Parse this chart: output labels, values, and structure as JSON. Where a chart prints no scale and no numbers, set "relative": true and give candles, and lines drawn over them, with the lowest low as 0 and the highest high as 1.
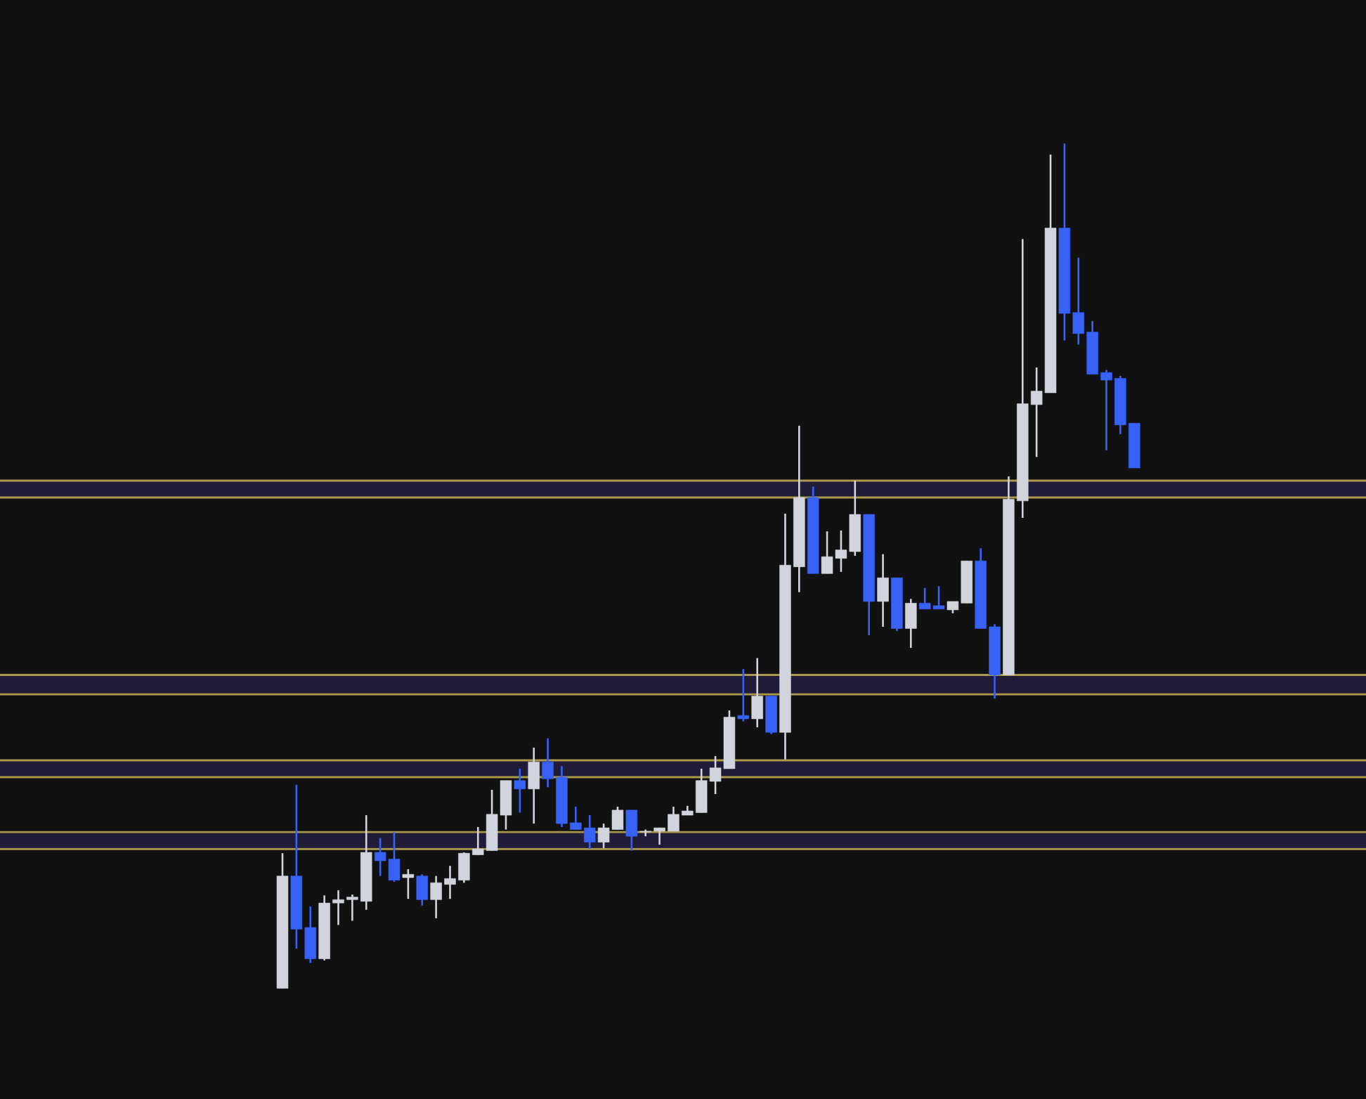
{
  "chart_data": {
    "type": "candlestick",
    "relative": true,
    "categories": [
      null,
      null,
      null,
      null,
      null,
      null,
      null,
      null,
      null,
      null,
      null,
      null,
      null,
      null,
      null,
      null,
      null,
      null,
      null,
      null,
      null,
      null,
      null,
      null,
      null,
      null,
      null,
      null,
      null,
      null,
      null,
      null,
      null,
      null,
      null,
      null,
      null,
      null,
      null,
      null,
      null,
      null,
      null,
      null,
      null,
      null,
      null,
      null,
      null,
      null,
      null,
      null,
      null,
      null,
      null,
      null,
      null,
      null,
      null,
      null,
      null,
      null
    ],
    "ohlc": [
      [
        0,
        0.16,
        0,
        0.133
      ],
      [
        0.133,
        0.241,
        0.047,
        0.07
      ],
      [
        0.072,
        0.097,
        0.03,
        0.035
      ],
      [
        0.035,
        0.11,
        0.033,
        0.101
      ],
      [
        0.101,
        0.116,
        0.075,
        0.105
      ],
      [
        0.105,
        0.111,
        0.08,
        0.108
      ],
      [
        0.103,
        0.205,
        0.093,
        0.161
      ],
      [
        0.161,
        0.178,
        0.133,
        0.151
      ],
      [
        0.153,
        0.185,
        0.126,
        0.128
      ],
      [
        0.131,
        0.141,
        0.106,
        0.135
      ],
      [
        0.133,
        0.135,
        0.098,
        0.105
      ],
      [
        0.105,
        0.133,
        0.083,
        0.125
      ],
      [
        0.123,
        0.145,
        0.106,
        0.13
      ],
      [
        0.128,
        0.161,
        0.125,
        0.16
      ],
      [
        0.158,
        0.191,
        0.158,
        0.165
      ],
      [
        0.163,
        0.235,
        0.163,
        0.206
      ],
      [
        0.205,
        0.246,
        0.188,
        0.246
      ],
      [
        0.246,
        0.26,
        0.208,
        0.236
      ],
      [
        0.236,
        0.285,
        0.195,
        0.268
      ],
      [
        0.268,
        0.296,
        0.238,
        0.248
      ],
      [
        0.25,
        0.263,
        0.191,
        0.195
      ],
      [
        0.196,
        0.215,
        0.188,
        0.188
      ],
      [
        0.19,
        0.205,
        0.165,
        0.173
      ],
      [
        0.173,
        0.195,
        0.166,
        0.19
      ],
      [
        0.188,
        0.215,
        0.188,
        0.211
      ],
      [
        0.211,
        0.211,
        0.163,
        0.18
      ],
      [
        0.185,
        0.188,
        0.18,
        0.186
      ],
      [
        0.186,
        0.19,
        0.17,
        0.19
      ],
      [
        0.186,
        0.215,
        0.186,
        0.206
      ],
      [
        0.205,
        0.216,
        0.205,
        0.21
      ],
      [
        0.208,
        0.26,
        0.208,
        0.246
      ],
      [
        0.245,
        0.275,
        0.23,
        0.261
      ],
      [
        0.26,
        0.329,
        0.26,
        0.321
      ],
      [
        0.323,
        0.378,
        0.316,
        0.319
      ],
      [
        0.319,
        0.391,
        0.309,
        0.346
      ],
      [
        0.346,
        0.346,
        0.301,
        0.303
      ],
      [
        0.303,
        0.562,
        0.271,
        0.501
      ],
      [
        0.499,
        0.666,
        0.469,
        0.581
      ],
      [
        0.581,
        0.594,
        0.491,
        0.491
      ],
      [
        0.491,
        0.541,
        0.491,
        0.511
      ],
      [
        0.509,
        0.542,
        0.493,
        0.519
      ],
      [
        0.517,
        0.601,
        0.512,
        0.561
      ],
      [
        0.561,
        0.561,
        0.418,
        0.458
      ],
      [
        0.458,
        0.514,
        0.428,
        0.486
      ],
      [
        0.486,
        0.486,
        0.423,
        0.426
      ],
      [
        0.426,
        0.461,
        0.403,
        0.456
      ],
      [
        0.456,
        0.474,
        0.449,
        0.449
      ],
      [
        0.453,
        0.476,
        0.449,
        0.449
      ],
      [
        0.448,
        0.458,
        0.444,
        0.458
      ],
      [
        0.456,
        0.506,
        0.456,
        0.506
      ],
      [
        0.506,
        0.521,
        0.426,
        0.426
      ],
      [
        0.428,
        0.431,
        0.343,
        0.371
      ],
      [
        0.371,
        0.606,
        0.371,
        0.579
      ],
      [
        0.577,
        0.887,
        0.557,
        0.692
      ],
      [
        0.691,
        0.735,
        0.629,
        0.707
      ],
      [
        0.705,
        0.987,
        0.705,
        0.9
      ],
      [
        0.9,
        1,
        0.767,
        0.799
      ],
      [
        0.8,
        0.865,
        0.762,
        0.775
      ],
      [
        0.777,
        0.79,
        0.727,
        0.727
      ],
      [
        0.729,
        0.732,
        0.637,
        0.72
      ],
      [
        0.722,
        0.725,
        0.656,
        0.667
      ],
      [
        0.669,
        0.669,
        0.616,
        0.616
      ]
    ],
    "colors": [
      "#d1d4dc",
      "#3861f6",
      "#3861f6",
      "#d1d4dc",
      "#d1d4dc",
      "#d1d4dc",
      "#d1d4dc",
      "#3861f6",
      "#3861f6",
      "#d1d4dc",
      "#3861f6",
      "#d1d4dc",
      "#d1d4dc",
      "#d1d4dc",
      "#d1d4dc",
      "#d1d4dc",
      "#d1d4dc",
      "#3861f6",
      "#d1d4dc",
      "#3861f6",
      "#3861f6",
      "#3861f6",
      "#3861f6",
      "#d1d4dc",
      "#d1d4dc",
      "#3861f6",
      "#d1d4dc",
      "#d1d4dc",
      "#d1d4dc",
      "#d1d4dc",
      "#d1d4dc",
      "#d1d4dc",
      "#d1d4dc",
      "#3861f6",
      "#d1d4dc",
      "#3861f6",
      "#d1d4dc",
      "#d1d4dc",
      "#3861f6",
      "#d1d4dc",
      "#d1d4dc",
      "#d1d4dc",
      "#3861f6",
      "#d1d4dc",
      "#3861f6",
      "#d1d4dc",
      "#3861f6",
      "#3861f6",
      "#d1d4dc",
      "#d1d4dc",
      "#3861f6",
      "#3861f6",
      "#d1d4dc",
      "#d1d4dc",
      "#d1d4dc",
      "#d1d4dc",
      "#3861f6",
      "#3861f6",
      "#3861f6",
      "#3861f6",
      "#3861f6",
      "#3861f6"
    ],
    "bands": [
      {
        "axis": "y",
        "from": 0.165,
        "to": 0.185,
        "color": "#201c38"
      },
      {
        "axis": "y",
        "from": 0.25,
        "to": 0.27,
        "color": "#201c38"
      },
      {
        "axis": "y",
        "from": 0.348,
        "to": 0.371,
        "color": "#201c38"
      },
      {
        "axis": "y",
        "from": 0.581,
        "to": 0.601,
        "color": "#201c38"
      }
    ],
    "ref_lines": [
      {
        "axis": "y",
        "value": 0.165,
        "color": "#a89a4a"
      },
      {
        "axis": "y",
        "value": 0.185,
        "color": "#a89a4a"
      },
      {
        "axis": "y",
        "value": 0.25,
        "color": "#a89a4a"
      },
      {
        "axis": "y",
        "value": 0.27,
        "color": "#a89a4a"
      },
      {
        "axis": "y",
        "value": 0.348,
        "color": "#a89a4a"
      },
      {
        "axis": "y",
        "value": 0.371,
        "color": "#a89a4a"
      },
      {
        "axis": "y",
        "value": 0.581,
        "color": "#a89a4a"
      },
      {
        "axis": "y",
        "value": 0.601,
        "color": "#a89a4a"
      }
    ]
  }
}
